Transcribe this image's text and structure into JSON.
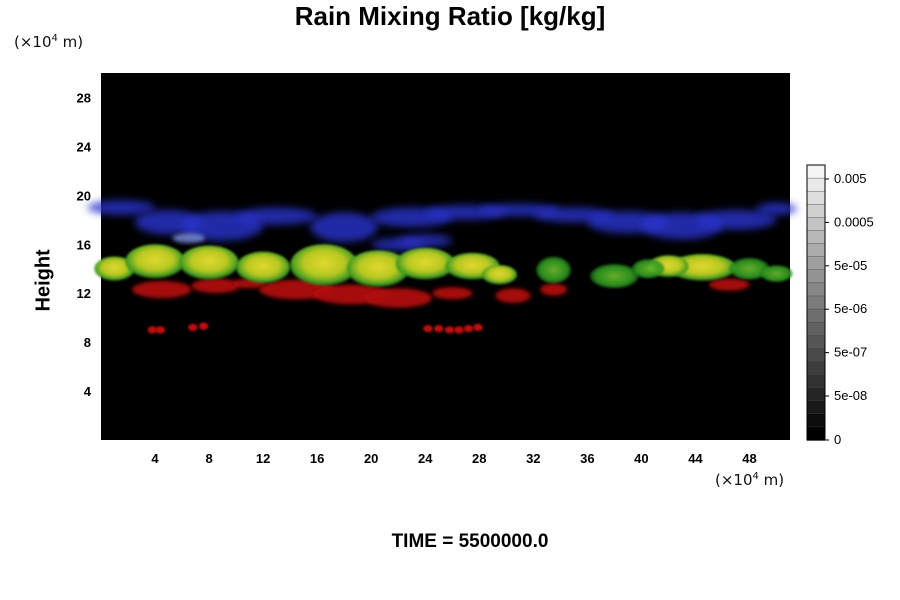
{
  "chart_data": {
    "type": "heatmap",
    "title": "Rain Mixing Ratio [kg/kg]",
    "ylabel": "Height",
    "xlabel": "",
    "y_units": "(×10⁴ m)",
    "x_units": "(×10⁴ m)",
    "footer": "TIME = 5500000.0",
    "xlim": [
      0,
      51
    ],
    "ylim": [
      0,
      30
    ],
    "x_ticks": [
      4,
      8,
      12,
      16,
      20,
      24,
      28,
      32,
      36,
      40,
      44,
      48
    ],
    "y_ticks": [
      4,
      8,
      12,
      16,
      20,
      24,
      28
    ],
    "grid": false,
    "background": "#000000",
    "colorbar": {
      "scale": "log",
      "labels": [
        "0.005",
        "0.0005",
        "5e-05",
        "5e-06",
        "5e-07",
        "5e-08",
        "0"
      ],
      "levels": 21
    },
    "colors": {
      "upper_band": "#2a36d0",
      "main_band_core": "#d8d020",
      "main_band_edge": "#2fa020",
      "lower_band": "#b01010",
      "isolated_drops": "#c01010"
    },
    "features": [
      {
        "layer": "upper",
        "color": "blue",
        "x": [
          0,
          51
        ],
        "y": [
          15.5,
          19.5
        ]
      },
      {
        "layer": "main",
        "color": "yellow-green",
        "x": [
          0,
          51
        ],
        "y": [
          12.5,
          16.5
        ]
      },
      {
        "layer": "lower",
        "color": "red",
        "x": [
          2,
          47
        ],
        "y": [
          11,
          13.5
        ]
      },
      {
        "layer": "drops",
        "color": "red",
        "x": [
          3.5,
          28
        ],
        "y": [
          8.5,
          9.5
        ]
      }
    ]
  }
}
